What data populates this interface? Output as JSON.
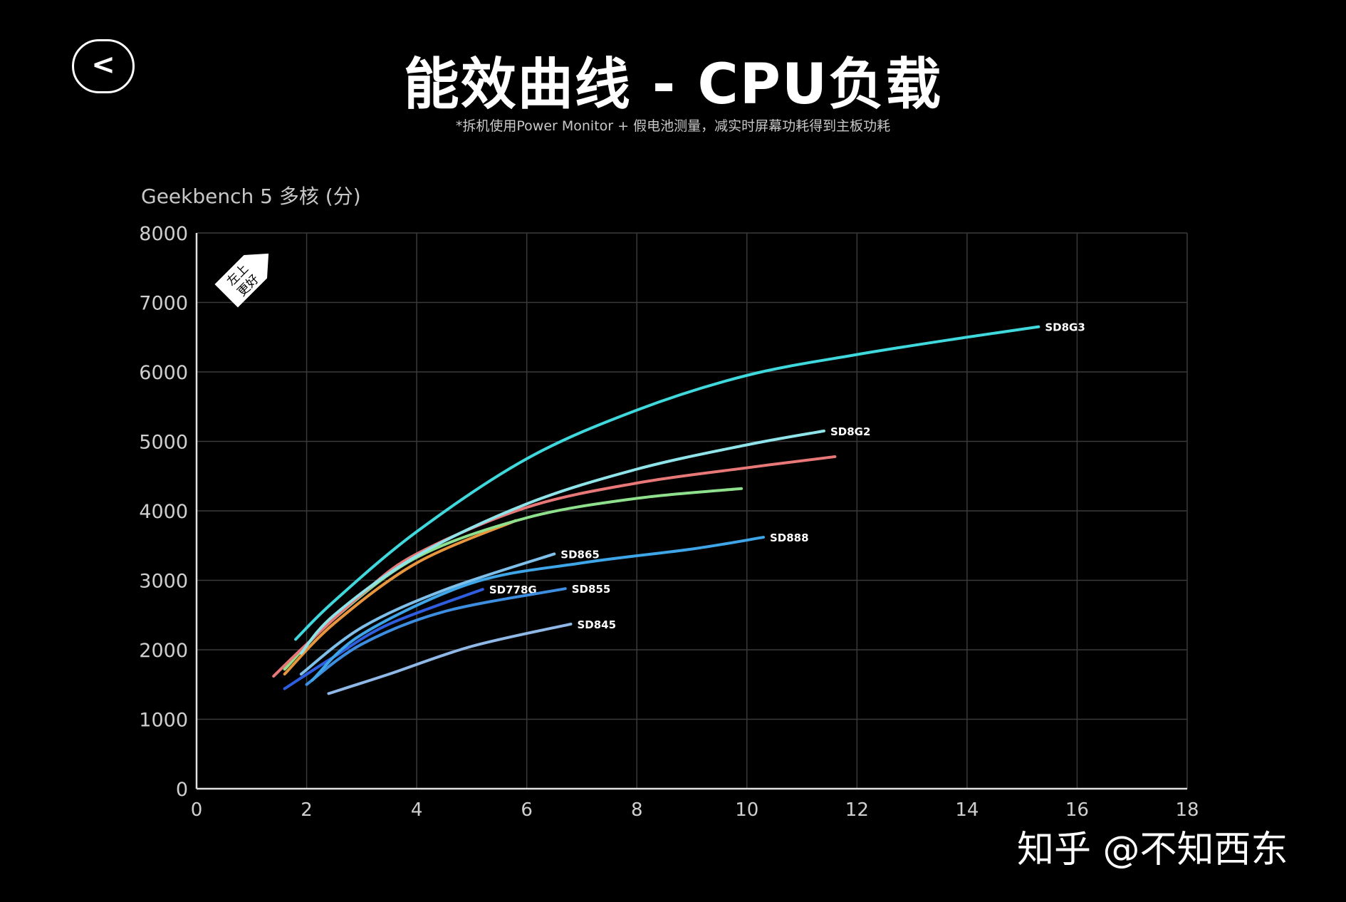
{
  "header": {
    "back_label": "<",
    "title": "能效曲线 - CPU负载",
    "subtitle": "*拆机使用Power Monitor + 假电池测量，减实时屏幕功耗得到主板功耗"
  },
  "badge": {
    "line1": "左上",
    "line2": "更好"
  },
  "credit": "知乎 @不知西东",
  "chart_data": {
    "type": "line",
    "title": "",
    "ylabel": "Geekbench 5 多核 (分)",
    "xlabel": "",
    "xlim": [
      0,
      18
    ],
    "ylim": [
      0,
      8000
    ],
    "xticks": [
      0,
      2,
      4,
      6,
      8,
      10,
      12,
      14,
      16,
      18
    ],
    "yticks": [
      0,
      1000,
      2000,
      3000,
      4000,
      5000,
      6000,
      7000,
      8000
    ],
    "grid": true,
    "series": [
      {
        "name": "SD8G3",
        "color": "#3fd8dc",
        "points": [
          [
            1.8,
            2150
          ],
          [
            2.5,
            2700
          ],
          [
            4,
            3700
          ],
          [
            6,
            4750
          ],
          [
            8,
            5450
          ],
          [
            10,
            5950
          ],
          [
            12,
            6250
          ],
          [
            14,
            6500
          ],
          [
            15.3,
            6650
          ]
        ]
      },
      {
        "name": "SD8G2",
        "color": "#8fe4ea",
        "points": [
          [
            1.9,
            1950
          ],
          [
            2.5,
            2500
          ],
          [
            4,
            3350
          ],
          [
            6,
            4100
          ],
          [
            8,
            4600
          ],
          [
            10,
            4950
          ],
          [
            11.4,
            5150
          ]
        ]
      },
      {
        "name": "",
        "color": "#e87878",
        "points": [
          [
            1.4,
            1620
          ],
          [
            2,
            2080
          ],
          [
            3,
            2800
          ],
          [
            4,
            3380
          ],
          [
            6,
            4050
          ],
          [
            8,
            4400
          ],
          [
            10,
            4620
          ],
          [
            11.6,
            4780
          ]
        ]
      },
      {
        "name": "",
        "color": "#8fe08c",
        "points": [
          [
            1.6,
            1720
          ],
          [
            2.5,
            2450
          ],
          [
            4,
            3330
          ],
          [
            6,
            3900
          ],
          [
            8,
            4180
          ],
          [
            9.9,
            4320
          ]
        ]
      },
      {
        "name": "",
        "color": "#e8963e",
        "points": [
          [
            1.6,
            1650
          ],
          [
            2.5,
            2380
          ],
          [
            4,
            3250
          ],
          [
            5.8,
            3860
          ]
        ]
      },
      {
        "name": "SD888",
        "color": "#3ea6e8",
        "points": [
          [
            2.1,
            1560
          ],
          [
            3,
            2220
          ],
          [
            5,
            2960
          ],
          [
            7,
            3250
          ],
          [
            9,
            3450
          ],
          [
            10.3,
            3620
          ]
        ]
      },
      {
        "name": "SD865",
        "color": "#7fc0ea",
        "points": [
          [
            1.9,
            1650
          ],
          [
            3,
            2320
          ],
          [
            4.5,
            2860
          ],
          [
            6.5,
            3380
          ]
        ]
      },
      {
        "name": "SD855",
        "color": "#3d8ee0",
        "points": [
          [
            2,
            1500
          ],
          [
            3,
            2080
          ],
          [
            4.5,
            2550
          ],
          [
            6.7,
            2880
          ]
        ]
      },
      {
        "name": "SD778G",
        "color": "#2f5fe0",
        "points": [
          [
            1.6,
            1440
          ],
          [
            2.5,
            1900
          ],
          [
            3.5,
            2370
          ],
          [
            5.2,
            2870
          ]
        ]
      },
      {
        "name": "SD845",
        "color": "#90b8e6",
        "points": [
          [
            2.4,
            1370
          ],
          [
            3.5,
            1650
          ],
          [
            5,
            2050
          ],
          [
            6.8,
            2370
          ]
        ]
      }
    ]
  }
}
